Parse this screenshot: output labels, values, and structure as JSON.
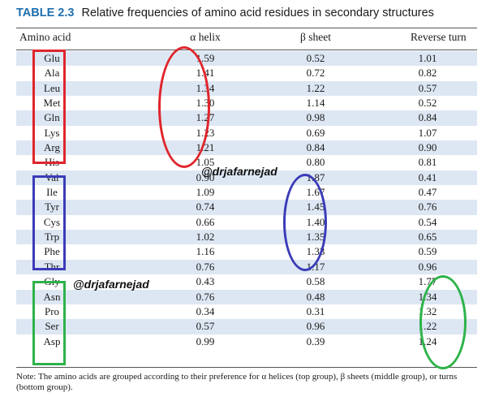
{
  "title": {
    "label": "TABLE 2.3",
    "text": "Relative frequencies of amino acid residues in secondary structures"
  },
  "columns": [
    "Amino acid",
    "α helix",
    "β sheet",
    "Reverse turn"
  ],
  "rows": [
    [
      "Glu",
      "1.59",
      "0.52",
      "1.01"
    ],
    [
      "Ala",
      "1.41",
      "0.72",
      "0.82"
    ],
    [
      "Leu",
      "1.34",
      "1.22",
      "0.57"
    ],
    [
      "Met",
      "1.30",
      "1.14",
      "0.52"
    ],
    [
      "Gln",
      "1.27",
      "0.98",
      "0.84"
    ],
    [
      "Lys",
      "1.23",
      "0.69",
      "1.07"
    ],
    [
      "Arg",
      "1.21",
      "0.84",
      "0.90"
    ],
    [
      "His",
      "1.05",
      "0.80",
      "0.81"
    ],
    [
      "Val",
      "0.90",
      "1.87",
      "0.41"
    ],
    [
      "Ile",
      "1.09",
      "1.67",
      "0.47"
    ],
    [
      "Tyr",
      "0.74",
      "1.45",
      "0.76"
    ],
    [
      "Cys",
      "0.66",
      "1.40",
      "0.54"
    ],
    [
      "Trp",
      "1.02",
      "1.35",
      "0.65"
    ],
    [
      "Phe",
      "1.16",
      "1.33",
      "0.59"
    ],
    [
      "Thr",
      "0.76",
      "1.17",
      "0.96"
    ],
    [
      "Gly",
      "0.43",
      "0.58",
      "1.77"
    ],
    [
      "Asn",
      "0.76",
      "0.48",
      "1.34"
    ],
    [
      "Pro",
      "0.34",
      "0.31",
      "1.32"
    ],
    [
      "Ser",
      "0.57",
      "0.96",
      "1.22"
    ],
    [
      "Asp",
      "0.99",
      "0.39",
      "1.24"
    ]
  ],
  "note": "Note: The amino acids are grouped according to their preference for α helices (top group), β sheets (middle group), or turns (bottom group).",
  "watermarks": [
    "@drjafarnejad",
    "@drjafarnejad"
  ],
  "colors": {
    "title_label": "#1e6fb0",
    "row_shade": "#dde7f3",
    "helix_marker": "#e0252b",
    "sheet_marker": "#3b3bb8",
    "turn_marker": "#2db34a"
  }
}
